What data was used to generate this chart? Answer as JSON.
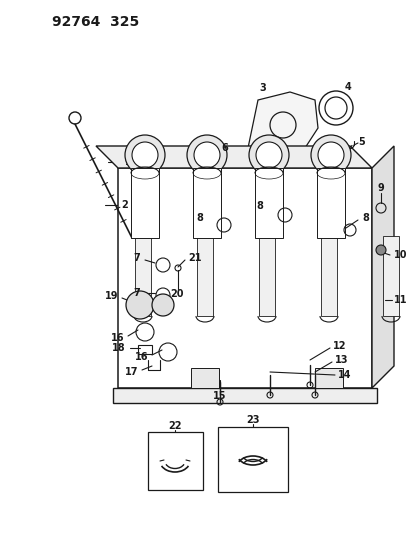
{
  "title": "92764  325",
  "bg_color": "#ffffff",
  "lc": "#1a1a1a",
  "title_fontsize": 10,
  "lfs": 7,
  "fig_width": 4.14,
  "fig_height": 5.33,
  "dpi": 100
}
